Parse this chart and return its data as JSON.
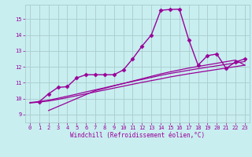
{
  "bg_color": "#c8eef0",
  "line_color": "#990099",
  "grid_color": "#aacccc",
  "xlabel": "Windchill (Refroidissement éolien,°C)",
  "ylim": [
    8.5,
    15.9
  ],
  "xlim": [
    -0.5,
    23.5
  ],
  "yticks": [
    9,
    10,
    11,
    12,
    13,
    14,
    15
  ],
  "xticks": [
    0,
    1,
    2,
    3,
    4,
    5,
    6,
    7,
    8,
    9,
    10,
    11,
    12,
    13,
    14,
    15,
    16,
    17,
    18,
    19,
    20,
    21,
    22,
    23
  ],
  "series": [
    {
      "x": [
        1,
        2,
        3,
        4,
        5,
        6,
        7,
        8,
        9,
        10,
        11,
        12,
        13,
        14,
        15,
        16,
        17,
        18,
        19,
        20,
        21,
        22,
        23
      ],
      "y": [
        9.8,
        10.3,
        10.7,
        10.75,
        11.3,
        11.5,
        11.5,
        11.5,
        11.5,
        11.8,
        12.5,
        13.3,
        14.0,
        15.55,
        15.6,
        15.62,
        13.7,
        12.1,
        12.7,
        12.8,
        11.9,
        12.3,
        12.5
      ],
      "marker": "D",
      "markersize": 2.5,
      "linewidth": 1.0
    },
    {
      "x": [
        2,
        3,
        4,
        5,
        6,
        7,
        8,
        9,
        10,
        11,
        12,
        13,
        14,
        15,
        16,
        17,
        18,
        19,
        20,
        21,
        22,
        23
      ],
      "y": [
        9.25,
        9.5,
        9.75,
        10.0,
        10.25,
        10.5,
        10.65,
        10.8,
        10.95,
        11.1,
        11.25,
        11.4,
        11.55,
        11.68,
        11.8,
        11.92,
        12.02,
        12.12,
        12.22,
        12.32,
        12.42,
        12.1
      ],
      "marker": null,
      "linewidth": 0.9
    },
    {
      "x": [
        0,
        1,
        2,
        3,
        4,
        5,
        6,
        7,
        8,
        9,
        10,
        11,
        12,
        13,
        14,
        15,
        16,
        17,
        18,
        19,
        20,
        21,
        22,
        23
      ],
      "y": [
        9.75,
        9.82,
        9.9,
        10.02,
        10.15,
        10.28,
        10.42,
        10.55,
        10.68,
        10.82,
        10.95,
        11.08,
        11.2,
        11.33,
        11.46,
        11.58,
        11.68,
        11.78,
        11.88,
        11.97,
        12.06,
        12.15,
        12.24,
        12.33
      ],
      "marker": null,
      "linewidth": 0.9
    },
    {
      "x": [
        0,
        1,
        2,
        3,
        4,
        5,
        6,
        7,
        8,
        9,
        10,
        11,
        12,
        13,
        14,
        15,
        16,
        17,
        18,
        19,
        20,
        21,
        22,
        23
      ],
      "y": [
        9.72,
        9.78,
        9.85,
        9.95,
        10.06,
        10.18,
        10.3,
        10.42,
        10.54,
        10.66,
        10.78,
        10.9,
        11.02,
        11.13,
        11.24,
        11.36,
        11.46,
        11.56,
        11.65,
        11.74,
        11.83,
        11.92,
        12.01,
        12.1
      ],
      "marker": null,
      "linewidth": 0.9
    }
  ]
}
